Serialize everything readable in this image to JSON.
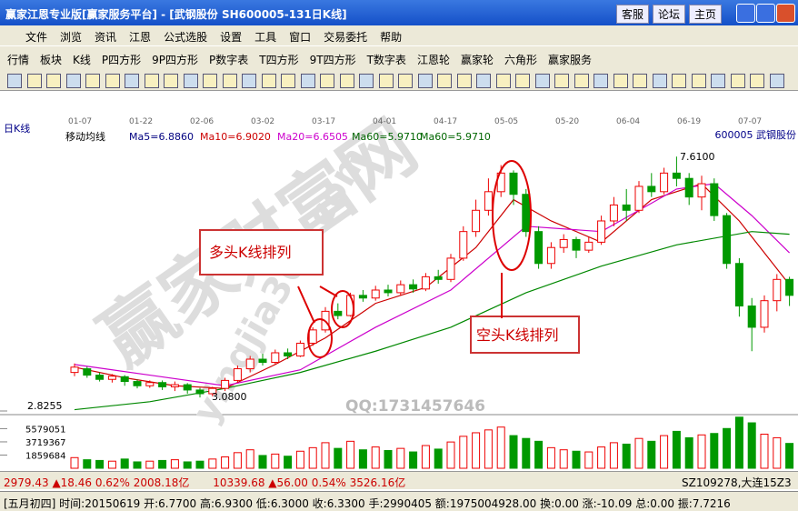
{
  "window": {
    "title": "赢家江恩专业版[赢家服务平台] - [武钢股份   SH600005-131日K线]",
    "buttons": [
      "客服",
      "论坛",
      "主页"
    ]
  },
  "menu": [
    "文件",
    "浏览",
    "资讯",
    "江恩",
    "公式选股",
    "设置",
    "工具",
    "窗口",
    "交易委托",
    "帮助"
  ],
  "toolbar": [
    "行情",
    "板块",
    "K线",
    "P四方形",
    "9P四方形",
    "P数字表",
    "T四方形",
    "9T四方形",
    "T数字表",
    "江恩轮",
    "赢家轮",
    "六角形",
    "赢家服务"
  ],
  "chart_data": {
    "type": "candlestick",
    "period": "日K线",
    "indicator": "移动均线",
    "ma_labels": [
      {
        "text": "Ma5=6.8860",
        "color": "#000080"
      },
      {
        "text": "Ma10=6.9020",
        "color": "#cc0000"
      },
      {
        "text": "Ma20=6.6505",
        "color": "#cc00cc"
      },
      {
        "text": "Ma60=5.9710",
        "color": "#006600"
      },
      {
        "text": "Ma60=5.9710",
        "color": "#006600"
      }
    ],
    "stock": "600005  武钢股份",
    "dates": [
      "01-07",
      "01-22",
      "02-06",
      "03-02",
      "03-17",
      "04-01",
      "04-17",
      "05-05",
      "05-20",
      "06-04",
      "06-19",
      "07-07"
    ],
    "ylim": [
      2.8255,
      7.99
    ],
    "yticks": [
      2.8255
    ],
    "candles": [
      [
        3.55,
        3.65,
        3.72,
        3.48
      ],
      [
        3.62,
        3.5,
        3.66,
        3.45
      ],
      [
        3.5,
        3.42,
        3.55,
        3.38
      ],
      [
        3.42,
        3.48,
        3.52,
        3.36
      ],
      [
        3.47,
        3.38,
        3.5,
        3.3
      ],
      [
        3.38,
        3.3,
        3.42,
        3.25
      ],
      [
        3.3,
        3.36,
        3.4,
        3.26
      ],
      [
        3.36,
        3.28,
        3.4,
        3.22
      ],
      [
        3.28,
        3.32,
        3.38,
        3.2
      ],
      [
        3.32,
        3.22,
        3.35,
        3.15
      ],
      [
        3.22,
        3.15,
        3.26,
        3.08
      ],
      [
        3.15,
        3.25,
        3.28,
        3.1
      ],
      [
        3.25,
        3.4,
        3.45,
        3.2
      ],
      [
        3.4,
        3.62,
        3.68,
        3.36
      ],
      [
        3.62,
        3.8,
        3.86,
        3.55
      ],
      [
        3.8,
        3.74,
        3.9,
        3.68
      ],
      [
        3.74,
        3.92,
        3.98,
        3.7
      ],
      [
        3.92,
        3.86,
        4.0,
        3.8
      ],
      [
        3.86,
        4.1,
        4.15,
        3.84
      ],
      [
        4.1,
        4.35,
        4.4,
        4.05
      ],
      [
        4.35,
        4.7,
        4.78,
        4.3
      ],
      [
        4.7,
        4.62,
        4.85,
        4.55
      ],
      [
        4.62,
        5.0,
        5.05,
        4.6
      ],
      [
        5.0,
        4.95,
        5.1,
        4.88
      ],
      [
        4.95,
        5.1,
        5.18,
        4.9
      ],
      [
        5.1,
        5.05,
        5.2,
        4.98
      ],
      [
        5.05,
        5.2,
        5.28,
        5.0
      ],
      [
        5.2,
        5.12,
        5.3,
        5.05
      ],
      [
        5.12,
        5.35,
        5.42,
        5.08
      ],
      [
        5.35,
        5.3,
        5.48,
        5.22
      ],
      [
        5.3,
        5.7,
        5.78,
        5.25
      ],
      [
        5.7,
        6.2,
        6.3,
        5.65
      ],
      [
        6.2,
        6.6,
        6.8,
        6.1
      ],
      [
        6.6,
        6.95,
        7.2,
        6.5
      ],
      [
        6.95,
        7.3,
        7.45,
        6.85
      ],
      [
        7.3,
        6.9,
        7.35,
        6.7
      ],
      [
        6.9,
        6.2,
        7.0,
        6.1
      ],
      [
        6.2,
        5.6,
        6.3,
        5.5
      ],
      [
        5.6,
        5.9,
        6.0,
        5.5
      ],
      [
        5.9,
        6.05,
        6.15,
        5.8
      ],
      [
        6.05,
        5.85,
        6.1,
        5.7
      ],
      [
        5.85,
        6.0,
        6.1,
        5.8
      ],
      [
        6.0,
        6.4,
        6.5,
        5.95
      ],
      [
        6.4,
        6.7,
        6.85,
        6.3
      ],
      [
        6.7,
        6.6,
        7.0,
        6.4
      ],
      [
        6.6,
        7.05,
        7.15,
        6.55
      ],
      [
        7.05,
        6.95,
        7.3,
        6.85
      ],
      [
        6.95,
        7.3,
        7.4,
        6.9
      ],
      [
        7.3,
        7.2,
        7.61,
        7.05
      ],
      [
        7.2,
        6.85,
        7.3,
        6.7
      ],
      [
        6.85,
        7.1,
        7.25,
        6.6
      ],
      [
        7.1,
        6.5,
        7.2,
        6.4
      ],
      [
        6.5,
        5.6,
        6.55,
        5.5
      ],
      [
        5.6,
        4.8,
        5.7,
        4.6
      ],
      [
        4.8,
        4.4,
        4.95,
        3.95
      ],
      [
        4.4,
        4.9,
        5.0,
        4.3
      ],
      [
        4.9,
        5.3,
        5.4,
        4.7
      ],
      [
        5.3,
        5.0,
        5.35,
        4.8
      ]
    ],
    "ma_series": [
      {
        "name": "Ma10",
        "color": "#cc0000",
        "x": [
          0,
          4,
          8,
          12,
          16,
          20,
          24,
          28,
          32,
          35,
          38,
          42,
          46,
          50,
          53,
          57
        ],
        "values": [
          3.65,
          3.45,
          3.3,
          3.25,
          3.7,
          4.2,
          4.85,
          5.15,
          5.9,
          6.8,
          6.4,
          6.0,
          6.8,
          7.1,
          6.4,
          5.2
        ]
      },
      {
        "name": "Ma20",
        "color": "#cc00cc",
        "x": [
          0,
          6,
          12,
          18,
          24,
          30,
          36,
          42,
          48,
          51,
          54,
          57
        ],
        "values": [
          3.7,
          3.5,
          3.3,
          3.6,
          4.4,
          5.1,
          6.3,
          6.2,
          7.0,
          7.1,
          6.5,
          5.8
        ]
      },
      {
        "name": "Ma60",
        "color": "#008800",
        "x": [
          0,
          6,
          12,
          18,
          24,
          30,
          36,
          42,
          48,
          54,
          57
        ],
        "values": [
          2.85,
          3.0,
          3.25,
          3.55,
          3.95,
          4.4,
          5.05,
          5.55,
          5.95,
          6.2,
          6.15
        ]
      }
    ],
    "high_label": "7.6100",
    "low_label": "3.0800",
    "annotations": [
      "多头K线排列",
      "空头K线排列"
    ],
    "watermark": "赢家财富网",
    "watermark_url": "yingjia360.com",
    "qq": "QQ:1731457646",
    "vol_ylim": [
      0,
      7300000
    ],
    "vol_yticks": [
      1859684,
      3719367,
      5579051
    ],
    "volumes": [
      1500000,
      1200000,
      1100000,
      1000000,
      1300000,
      900000,
      1000000,
      1100000,
      1200000,
      900000,
      1000000,
      1300000,
      1600000,
      2200000,
      2600000,
      1800000,
      2000000,
      1700000,
      2400000,
      2900000,
      3600000,
      2800000,
      3800000,
      2600000,
      3000000,
      2500000,
      2800000,
      2300000,
      3200000,
      2700000,
      3700000,
      4500000,
      5000000,
      5400000,
      5800000,
      4600000,
      4200000,
      3800000,
      2900000,
      2600000,
      2400000,
      2300000,
      3000000,
      3600000,
      3400000,
      4200000,
      3800000,
      4600000,
      5200000,
      4300000,
      4700000,
      4900000,
      5600000,
      7200000,
      6400000,
      4800000,
      4300000,
      3500000
    ]
  },
  "index_bar": {
    "sh": "2979.43 ▲18.46 0.62% 2008.18亿",
    "sz": "10339.68 ▲56.00 0.54% 3526.16亿",
    "right": "SZ109278,大连15Z3"
  },
  "status": "[五月初四] 时间:20150619 开:6.7700 高:6.9300 低:6.3000 收:6.3300 手:2990405 额:1975004928.00 换:0.00 涨:-10.09 总:0.00 振:7.7216"
}
